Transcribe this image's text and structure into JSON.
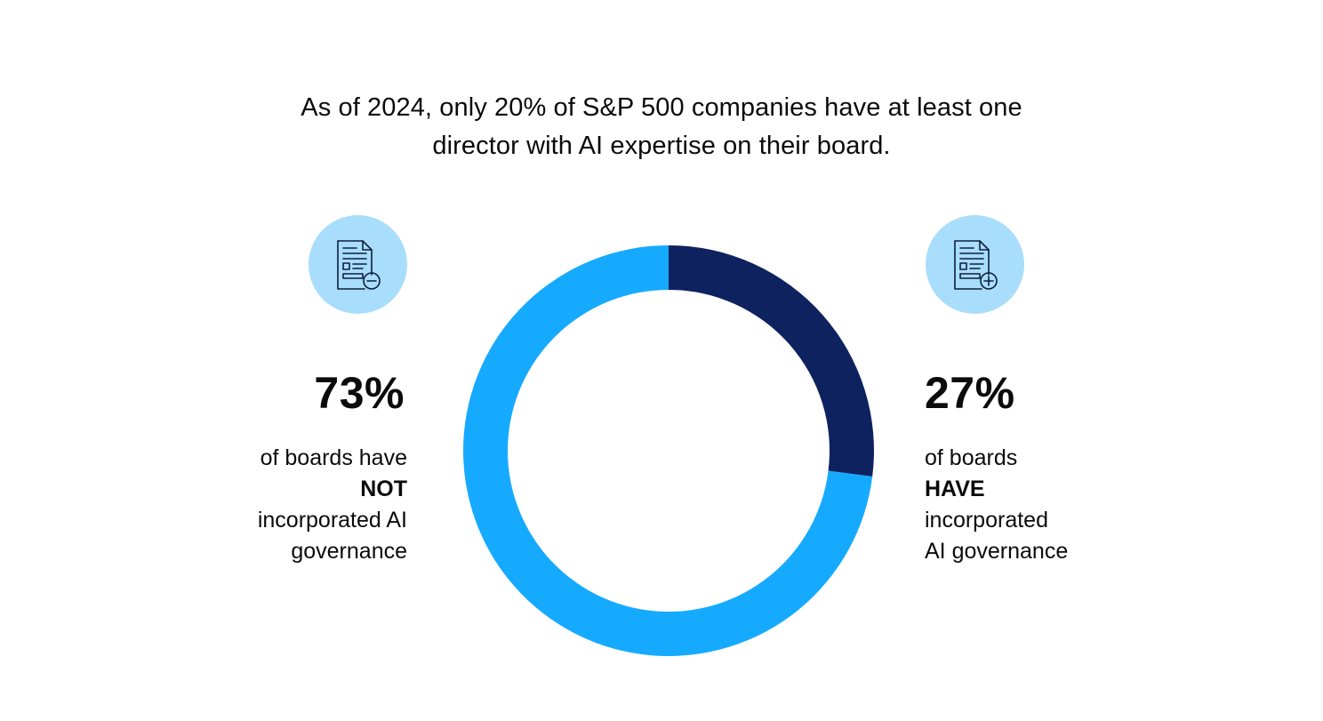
{
  "chart_data": {
    "type": "pie",
    "title": "As of 2024, only 20% of S&P 500 companies have at least one director with AI expertise on their board.",
    "categories": [
      "HAVE incorporated AI governance",
      "NOT incorporated AI governance"
    ],
    "values": [
      27,
      73
    ],
    "colors": [
      "#0f2260",
      "#16aaff"
    ],
    "style": "donut"
  },
  "header": {
    "title_line1": "As of 2024, only 20% of S&P 500 companies have at least one",
    "title_line2": "director with AI expertise on their board."
  },
  "left": {
    "icon": "document-minus-icon",
    "percent": "73%",
    "line1": "of boards have",
    "line2": "NOT",
    "line3": "incorporated AI",
    "line4": "governance"
  },
  "right": {
    "icon": "document-plus-icon",
    "percent": "27%",
    "line1": "of boards",
    "line2": "HAVE",
    "line3": "incorporated",
    "line4": "AI governance"
  },
  "colors": {
    "icon_bg": "#a8ddfb",
    "icon_stroke": "#0d1f3c",
    "donut_light": "#16aaff",
    "donut_dark": "#0f2260"
  }
}
